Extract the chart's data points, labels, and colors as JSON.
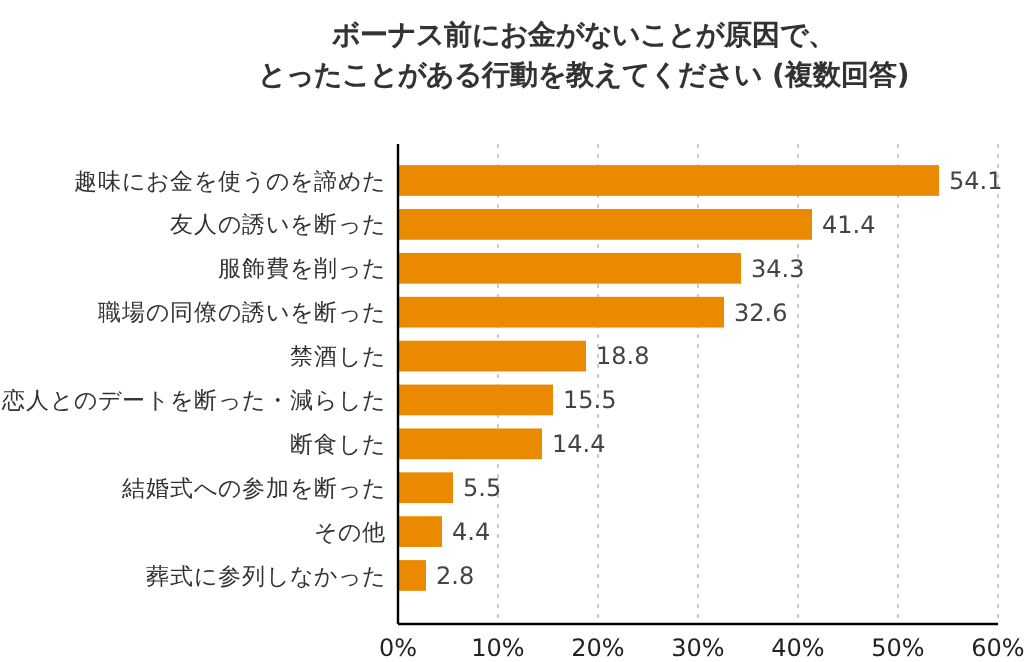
{
  "chart_data": {
    "type": "bar",
    "orientation": "horizontal",
    "title": "ボーナス前にお金がないことが原因で、とったことがある行動を教えてください (複数回答)",
    "categories": [
      "趣味にお金を使うのを諦めた",
      "友人の誘いを断った",
      "服飾費を削った",
      "職場の同僚の誘いを断った",
      "禁酒した",
      "恋人とのデートを断った・減らした",
      "断食した",
      "結婚式への参加を断った",
      "その他",
      "葬式に参列しなかった"
    ],
    "values": [
      54.1,
      41.4,
      34.3,
      32.6,
      18.8,
      15.5,
      14.4,
      5.5,
      4.4,
      2.8
    ],
    "color": "#eb8a00",
    "data_labels": true,
    "grid": "x",
    "xlim": [
      0,
      60
    ],
    "xticks": [
      {
        "value": 0,
        "label": "0%"
      },
      {
        "value": 10,
        "label": "10%"
      },
      {
        "value": 20,
        "label": "20%"
      },
      {
        "value": 30,
        "label": "30%"
      },
      {
        "value": 40,
        "label": "40%"
      },
      {
        "value": 50,
        "label": "50%"
      },
      {
        "value": 60,
        "label": "60%"
      }
    ]
  }
}
